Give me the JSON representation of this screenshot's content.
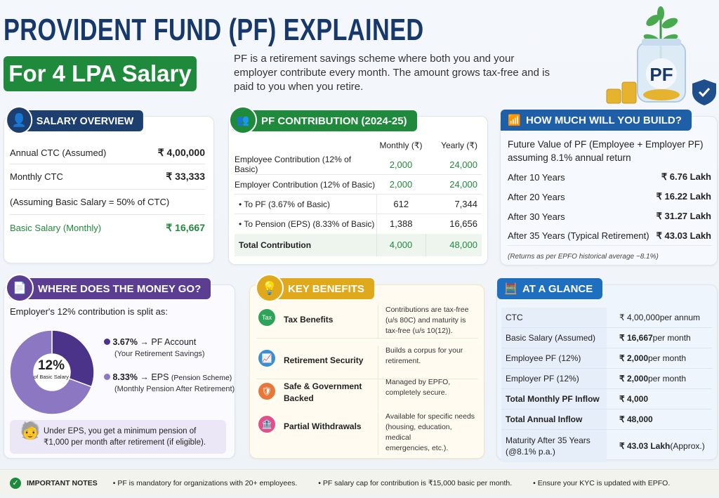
{
  "header": {
    "title": "PROVIDENT FUND (PF) EXPLAINED",
    "badge": "For 4 LPA Salary",
    "description": "PF is a retirement savings scheme where both you and your employer contribute every month. The amount grows tax-free and is paid to you when you retire.",
    "jar_label": "PF"
  },
  "salary_overview": {
    "title": "SALARY OVERVIEW",
    "rows": [
      {
        "label": "Annual CTC (Assumed)",
        "value": "₹ 4,00,000"
      },
      {
        "label": "Monthly CTC",
        "value": "₹ 33,333"
      },
      {
        "label": "(Assuming Basic Salary = 50% of CTC)",
        "value": ""
      },
      {
        "label": "Basic Salary (Monthly)",
        "value": "₹ 16,667"
      }
    ]
  },
  "pf_contribution": {
    "title": "PF CONTRIBUTION (2024-25)",
    "columns": [
      "Monthly (₹)",
      "Yearly (₹)"
    ],
    "rows": [
      {
        "label": "Employee Contribution (12% of Basic)",
        "monthly": "2,000",
        "yearly": "24,000"
      },
      {
        "label": "Employer Contribution (12% of Basic)",
        "monthly": "2,000",
        "yearly": "24,000"
      },
      {
        "label": "• To PF (3.67% of Basic)",
        "monthly": "612",
        "yearly": "7,344"
      },
      {
        "label": "• To Pension (EPS) (8.33% of Basic)",
        "monthly": "1,388",
        "yearly": "16,656"
      },
      {
        "label": "Total Contribution",
        "monthly": "4,000",
        "yearly": "48,000"
      }
    ]
  },
  "build": {
    "title": "HOW MUCH WILL YOU BUILD?",
    "intro1": "Future Value of PF (Employee + Employer PF)",
    "intro2": "assuming 8.1% annual return",
    "rows": [
      {
        "label": "After 10 Years",
        "value": "₹ 6.76 Lakh"
      },
      {
        "label": "After 20 Years",
        "value": "₹ 16.22 Lakh"
      },
      {
        "label": "After 30 Years",
        "value": "₹ 31.27 Lakh"
      },
      {
        "label": "After 35 Years (Typical Retirement)",
        "value": "₹ 43.03 Lakh"
      }
    ],
    "note": "(Returns as per EPFO historical average ~8.1%)"
  },
  "money": {
    "title": "WHERE DOES THE MONEY GO?",
    "intro": "Employer's 12% contribution is split as:",
    "center_value": "12%",
    "center_label": "of Basic Salary",
    "slices": [
      {
        "percent": 3.67,
        "pct_label": "3.67%",
        "arrow": "→",
        "name": "PF Account",
        "sub": "(Your Retirement Savings)",
        "color": "#4a3388"
      },
      {
        "percent": 8.33,
        "pct_label": "8.33%",
        "arrow": "→",
        "name": "EPS",
        "name_extra": "(Pension Scheme)",
        "sub": "(Monthly Pension After Retirement)",
        "color": "#8b77c2"
      }
    ],
    "note1": "Under EPS, you get a minimum pension of",
    "note2": "₹1,000 per month after retirement (if eligible)."
  },
  "benefits": {
    "title": "KEY BENEFITS",
    "items": [
      {
        "icon": "tax-icon",
        "icon_text": "Tax",
        "color": "#2ea35a",
        "name": "Tax Benefits",
        "desc": [
          "Contributions are tax-free",
          "(u/s 80C) and maturity is",
          "tax-free (u/s 10(12))."
        ]
      },
      {
        "icon": "growth-chart-icon",
        "color": "#3a8fd0",
        "name": "Retirement Security",
        "desc": [
          "Builds a corpus for your",
          "retirement."
        ]
      },
      {
        "icon": "shield-icon",
        "color": "#e8773a",
        "name": "Safe & Government|Backed",
        "desc": [
          "Managed by EPFO,",
          "completely secure."
        ]
      },
      {
        "icon": "piggy-bank-icon",
        "color": "#e0508a",
        "name": "Partial Withdrawals",
        "desc": [
          "Available for specific needs",
          "(housing, education, medical",
          "emergencies, etc.)."
        ]
      }
    ]
  },
  "glance": {
    "title": "AT A GLANCE",
    "rows": [
      {
        "label": "CTC",
        "value": "₹ 4,00,000",
        "suffix": " per annum",
        "bold": false
      },
      {
        "label": "Basic Salary (Assumed)",
        "value": "₹ 16,667",
        "suffix": " per month",
        "bold": false
      },
      {
        "label": "Employee PF (12%)",
        "value": "₹ 2,000",
        "suffix": " per month",
        "bold": false
      },
      {
        "label": "Employer PF (12%)",
        "value": "₹ 2,000",
        "suffix": " per month",
        "bold": false
      },
      {
        "label": "Total Monthly PF Inflow",
        "value": "₹ 4,000",
        "suffix": "",
        "bold": true
      },
      {
        "label": "Total Annual Inflow",
        "value": "₹ 48,000",
        "suffix": "",
        "bold": true
      },
      {
        "label": "Maturity After 35 Years|(@8.1% p.a.)",
        "value": "₹ 43.03 Lakh",
        "suffix": " (Approx.)",
        "bold": false
      }
    ]
  },
  "notes": {
    "title": "IMPORTANT NOTES",
    "items": [
      "• PF is mandatory for organizations with 20+ employees.",
      "• PF salary cap for contribution is ₹15,000 basic per month.",
      "• Ensure your KYC is updated with EPFO."
    ]
  },
  "colors": {
    "navy": "#17386b",
    "green": "#1f8a3b",
    "purple": "#5b3d92",
    "gold": "#e0a81b",
    "blue": "#1f5fa8"
  }
}
